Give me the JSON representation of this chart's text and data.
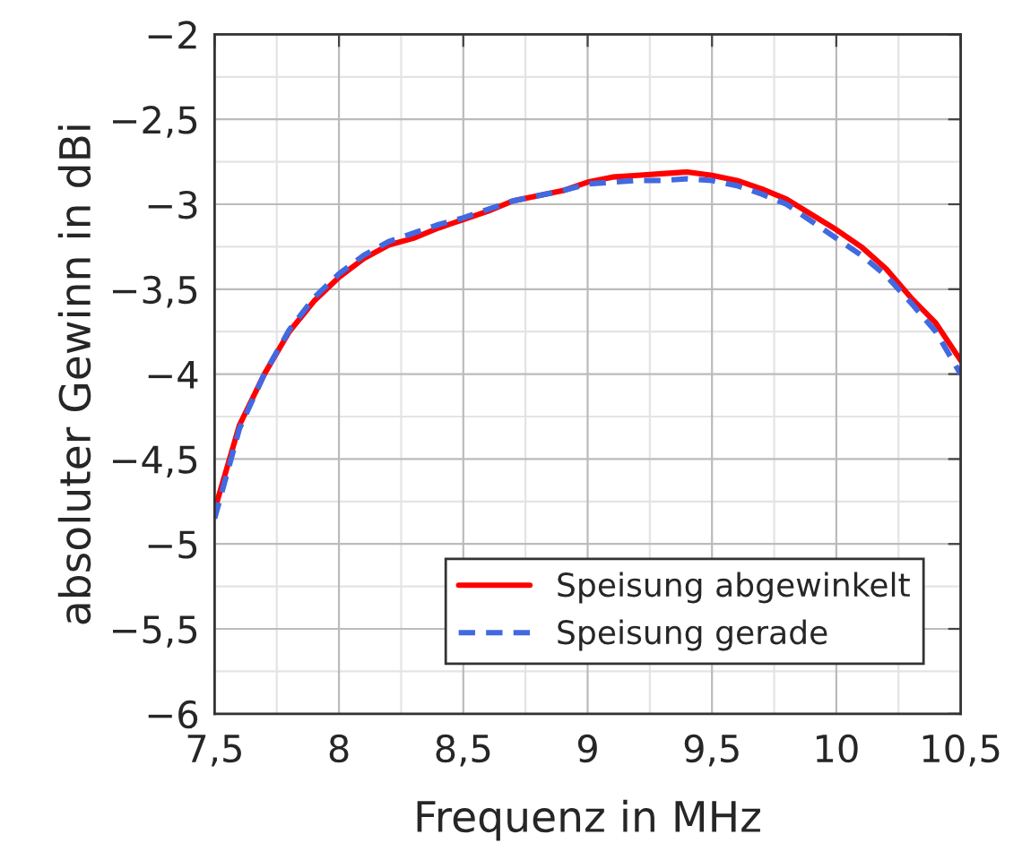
{
  "chart_data": {
    "type": "line",
    "xlabel": "Frequenz in MHz",
    "ylabel": "absoluter Gewinn in dBi",
    "xlim": [
      7.5,
      10.5
    ],
    "ylim": [
      -6,
      -2
    ],
    "xticks": [
      {
        "value": 7.5,
        "label": "7,5"
      },
      8,
      {
        "value": 8.5,
        "label": "8,5"
      },
      9,
      {
        "value": 9.5,
        "label": "9,5"
      },
      10,
      {
        "value": 10.5,
        "label": "10,5"
      }
    ],
    "yticks": [
      {
        "value": -6,
        "label": "−6"
      },
      {
        "value": -5.5,
        "label": "−5,5"
      },
      {
        "value": -5,
        "label": "−5"
      },
      {
        "value": -4.5,
        "label": "−4,5"
      },
      {
        "value": -4,
        "label": "−4"
      },
      {
        "value": -3.5,
        "label": "−3,5"
      },
      {
        "value": -3,
        "label": "−3"
      },
      {
        "value": -2.5,
        "label": "−2,5"
      },
      {
        "value": -2,
        "label": "−2"
      }
    ],
    "grid": true,
    "legend": "bottom",
    "marker": "none",
    "x": [
      7.5,
      7.6,
      7.7,
      7.8,
      7.9,
      8.0,
      8.1,
      8.2,
      8.3,
      8.4,
      8.5,
      8.6,
      8.7,
      8.8,
      8.9,
      9.0,
      9.1,
      9.2,
      9.3,
      9.4,
      9.5,
      9.6,
      9.7,
      9.8,
      9.9,
      10.0,
      10.1,
      10.2,
      10.3,
      10.4,
      10.5
    ],
    "series": [
      {
        "name": "Speisung abgewinkelt",
        "color": "#ff0000",
        "line_style": "solid",
        "values": [
          -4.8,
          -4.3,
          -4.0,
          -3.75,
          -3.57,
          -3.43,
          -3.32,
          -3.24,
          -3.2,
          -3.14,
          -3.09,
          -3.04,
          -2.98,
          -2.95,
          -2.92,
          -2.87,
          -2.84,
          -2.83,
          -2.82,
          -2.81,
          -2.83,
          -2.86,
          -2.91,
          -2.97,
          -3.06,
          -3.15,
          -3.25,
          -3.38,
          -3.55,
          -3.7,
          -3.92
        ]
      },
      {
        "name": "Speisung gerade",
        "color": "#4169e1",
        "line_style": "dashed",
        "values": [
          -4.85,
          -4.32,
          -4.0,
          -3.74,
          -3.55,
          -3.41,
          -3.3,
          -3.22,
          -3.17,
          -3.12,
          -3.08,
          -3.03,
          -2.98,
          -2.95,
          -2.92,
          -2.88,
          -2.87,
          -2.86,
          -2.86,
          -2.85,
          -2.86,
          -2.89,
          -2.94,
          -3.0,
          -3.1,
          -3.2,
          -3.3,
          -3.42,
          -3.58,
          -3.75,
          -4.0
        ]
      }
    ]
  }
}
